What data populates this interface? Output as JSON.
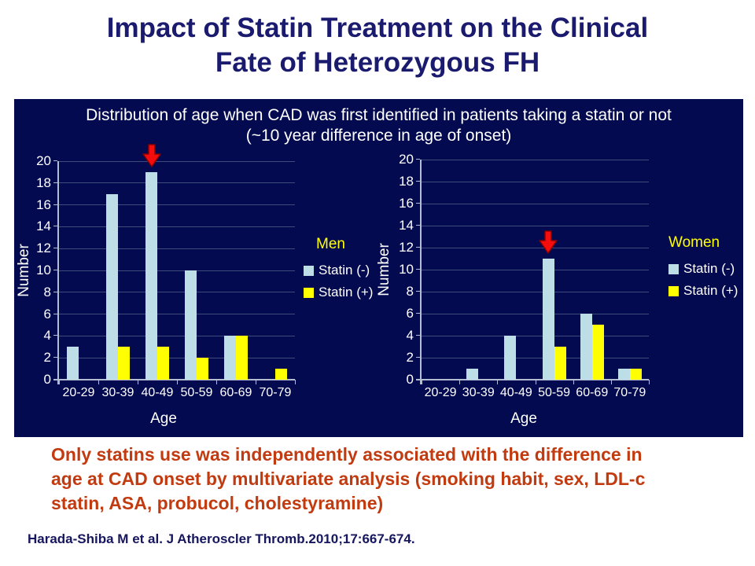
{
  "slide": {
    "title_lines": [
      "Impact of Statin Treatment on the Clinical",
      "Fate of Heterozygous FH"
    ],
    "panel_heading_lines": [
      "Distribution of age when CAD was first identified in patients taking a statin or not",
      "(~10 year difference in age of onset)"
    ],
    "conclusion_lines": [
      "Only statins use was independently associated with the difference in",
      "age at CAD onset by multivariate analysis (smoking habit, sex, LDL-c",
      "statin, ASA, probucol, cholestyramine)"
    ],
    "citation": "Harada-Shiba M et al. J Atheroscler Thromb.2010;17:667-674."
  },
  "colors": {
    "title_text": "#1A1A6E",
    "panel_bg": "#030A50",
    "heading_text": "#FFFFFF",
    "statin_neg": "#BDDEE6",
    "statin_pos": "#FFFF00",
    "legend_title": "#FFFF00",
    "gridline": "#3E4C7C",
    "axis_line": "#B3BCD0",
    "arrow_fill": "#F50D0D",
    "arrow_outline": "#8B0000",
    "conclusion_text": "#C23B10",
    "citation_text": "#16165E"
  },
  "chart_data": [
    {
      "type": "bar",
      "title": "Men",
      "categories": [
        "20-29",
        "30-39",
        "40-49",
        "50-59",
        "60-69",
        "70-79"
      ],
      "series": [
        {
          "name": "Statin (-)",
          "color": "#BDDEE6",
          "values": [
            3,
            17,
            19,
            10,
            4,
            0
          ]
        },
        {
          "name": "Statin (+)",
          "color": "#FFFF00",
          "values": [
            0,
            3,
            3,
            2,
            4,
            1
          ]
        }
      ],
      "xlabel": "Age",
      "ylabel": "Number",
      "ylim": [
        0,
        20
      ],
      "ytick_step": 2,
      "grid": true,
      "legend_position": "right",
      "arrow_annotation": {
        "category": "40-49",
        "series": "Statin (-)",
        "value": 19
      }
    },
    {
      "type": "bar",
      "title": "Women",
      "categories": [
        "20-29",
        "30-39",
        "40-49",
        "50-59",
        "60-69",
        "70-79"
      ],
      "series": [
        {
          "name": "Statin (-)",
          "color": "#BDDEE6",
          "values": [
            0,
            1,
            4,
            11,
            6,
            1
          ]
        },
        {
          "name": "Statin (+)",
          "color": "#FFFF00",
          "values": [
            0,
            0,
            0,
            3,
            5,
            1
          ]
        }
      ],
      "xlabel": "Age",
      "ylabel": "Number",
      "ylim": [
        0,
        20
      ],
      "ytick_step": 2,
      "grid": true,
      "legend_position": "right",
      "arrow_annotation": {
        "category": "50-59",
        "series": "Statin (-)",
        "value": 11
      }
    }
  ]
}
